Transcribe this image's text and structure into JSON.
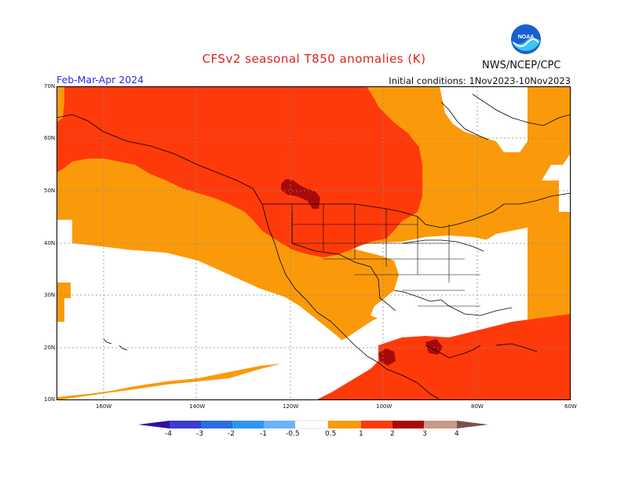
{
  "header": {
    "title": "CFSv2 seasonal T850 anomalies (K)",
    "period": "Feb-Mar-Apr 2024",
    "initial_conditions": "Initial conditions: 1Nov2023-10Nov2023",
    "agency": "NWS/NCEP/CPC",
    "logo_text": "NOAA"
  },
  "axes": {
    "lat_labels": [
      "70N",
      "60N",
      "50N",
      "40N",
      "30N",
      "20N",
      "10N"
    ],
    "lon_labels": [
      "160W",
      "140W",
      "120W",
      "100W",
      "80W",
      "60W"
    ]
  },
  "legend": {
    "labels": [
      "-4",
      "-3",
      "-2",
      "-1",
      "-0.5",
      "0.5",
      "1",
      "2",
      "3",
      "4"
    ],
    "colors": [
      "#2f10a0",
      "#3c3cd0",
      "#2a6ee0",
      "#2f96f0",
      "#6ab4f8",
      "#ffffff",
      "#fa9a0a",
      "#ff3a0a",
      "#a80a0a",
      "#c89a8a",
      "#7a5048"
    ]
  },
  "anomaly_colors": {
    "band_0.5_1": "#fa9a0a",
    "band_1_2": "#ff3a0a",
    "band_2_3": "#a80a0a"
  }
}
